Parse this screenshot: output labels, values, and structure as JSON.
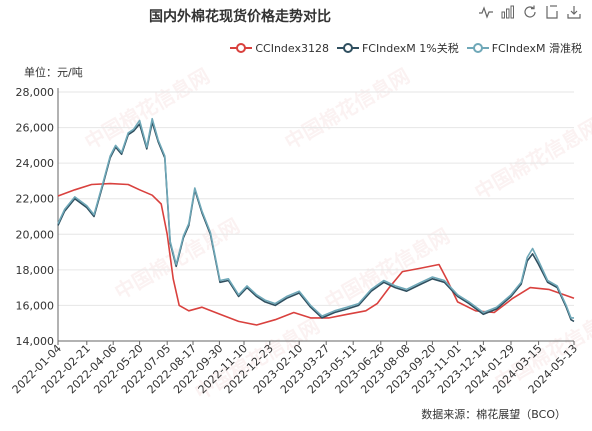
{
  "title": "国内外棉花现货价格走势对比",
  "unit_label": "单位：元/吨",
  "source_note": "数据来源：棉花展望（BCO）",
  "watermark_text": "中国棉花信息网",
  "toolbox": [
    {
      "name": "line-chart-icon"
    },
    {
      "name": "bar-chart-icon"
    },
    {
      "name": "refresh-icon"
    },
    {
      "name": "data-view-icon"
    },
    {
      "name": "save-image-icon"
    }
  ],
  "colors": {
    "CCIndex3128": "#d9413e",
    "FCIndexM_1pct": "#2f4f5f",
    "FCIndexM_slide": "#6fa8b8",
    "axis": "#666666",
    "grid": "#e6e6e6"
  },
  "chart_data": {
    "type": "line",
    "ylabel": "单位：元/吨",
    "ylim": [
      14000,
      28000
    ],
    "yticks": [
      14000,
      16000,
      18000,
      20000,
      22000,
      24000,
      26000,
      28000
    ],
    "ytick_labels": [
      "14,000",
      "16,000",
      "18,000",
      "20,000",
      "22,000",
      "24,000",
      "26,000",
      "28,000"
    ],
    "xlim": [
      "2022-01-04",
      "2024-05-13"
    ],
    "xtick_labels": [
      "2022-01-04",
      "2022-02-21",
      "2022-04-06",
      "2022-05-20",
      "2022-07-05",
      "2022-08-17",
      "2022-09-30",
      "2022-11-10",
      "2022-12-23",
      "2023-02-10",
      "2023-03-27",
      "2023-05-11",
      "2023-06-26",
      "2023-08-08",
      "2023-09-20",
      "2023-11-01",
      "2023-12-14",
      "2024-01-29",
      "2024-03-15",
      "2024-05-13"
    ],
    "legend_position": "top-right",
    "grid": "horizontal",
    "series": [
      {
        "name": "CCIndex3128",
        "x": [
          "2022-01-04",
          "2022-02-01",
          "2022-03-01",
          "2022-04-01",
          "2022-05-01",
          "2022-05-20",
          "2022-06-10",
          "2022-06-25",
          "2022-07-05",
          "2022-07-15",
          "2022-07-25",
          "2022-08-10",
          "2022-09-01",
          "2022-10-01",
          "2022-11-01",
          "2022-12-01",
          "2023-01-01",
          "2023-02-01",
          "2023-03-01",
          "2023-04-01",
          "2023-05-01",
          "2023-06-01",
          "2023-06-20",
          "2023-07-10",
          "2023-08-01",
          "2023-09-01",
          "2023-10-01",
          "2023-10-15",
          "2023-11-01",
          "2023-12-01",
          "2024-01-01",
          "2024-02-01",
          "2024-03-01",
          "2024-04-01",
          "2024-05-13"
        ],
        "y": [
          22150,
          22500,
          22800,
          22850,
          22800,
          22500,
          22200,
          21700,
          20000,
          17500,
          16000,
          15700,
          15900,
          15500,
          15100,
          14900,
          15200,
          15600,
          15300,
          15300,
          15500,
          15700,
          16100,
          17000,
          17900,
          18100,
          18300,
          17400,
          16200,
          15700,
          15600,
          16400,
          17000,
          16900,
          16400
        ]
      },
      {
        "name": "FCIndexM 1%关税",
        "x": [
          "2022-01-04",
          "2022-01-15",
          "2022-02-01",
          "2022-02-21",
          "2022-03-05",
          "2022-03-20",
          "2022-04-01",
          "2022-04-10",
          "2022-04-20",
          "2022-05-01",
          "2022-05-10",
          "2022-05-20",
          "2022-06-01",
          "2022-06-10",
          "2022-06-20",
          "2022-07-01",
          "2022-07-10",
          "2022-07-20",
          "2022-08-01",
          "2022-08-10",
          "2022-08-20",
          "2022-09-01",
          "2022-09-15",
          "2022-10-01",
          "2022-10-15",
          "2022-11-01",
          "2022-11-15",
          "2022-12-01",
          "2022-12-15",
          "2023-01-01",
          "2023-01-20",
          "2023-02-10",
          "2023-03-01",
          "2023-03-20",
          "2023-04-10",
          "2023-05-01",
          "2023-05-20",
          "2023-06-10",
          "2023-07-01",
          "2023-07-20",
          "2023-08-08",
          "2023-09-01",
          "2023-09-20",
          "2023-10-10",
          "2023-11-01",
          "2023-11-20",
          "2023-12-14",
          "2024-01-05",
          "2024-01-29",
          "2024-02-15",
          "2024-02-25",
          "2024-03-05",
          "2024-03-15",
          "2024-03-30",
          "2024-04-15",
          "2024-04-30",
          "2024-05-08",
          "2024-05-13"
        ],
        "y": [
          20500,
          21300,
          22000,
          21500,
          21000,
          22800,
          24300,
          24900,
          24500,
          25600,
          25800,
          26200,
          24800,
          26300,
          25200,
          24300,
          19500,
          18200,
          19800,
          20500,
          22500,
          21200,
          20000,
          17300,
          17400,
          16500,
          17000,
          16500,
          16200,
          16000,
          16400,
          16700,
          15900,
          15300,
          15600,
          15800,
          16000,
          16800,
          17300,
          17000,
          16800,
          17200,
          17500,
          17300,
          16500,
          16100,
          15500,
          15800,
          16500,
          17200,
          18500,
          18900,
          18300,
          17300,
          17000,
          15900,
          15200,
          15100
        ]
      },
      {
        "name": "FCIndexM 滑准税",
        "x": [
          "2022-01-04",
          "2022-01-15",
          "2022-02-01",
          "2022-02-21",
          "2022-03-05",
          "2022-03-20",
          "2022-04-01",
          "2022-04-10",
          "2022-04-20",
          "2022-05-01",
          "2022-05-10",
          "2022-05-20",
          "2022-06-01",
          "2022-06-10",
          "2022-06-20",
          "2022-07-01",
          "2022-07-10",
          "2022-07-20",
          "2022-08-01",
          "2022-08-10",
          "2022-08-20",
          "2022-09-01",
          "2022-09-15",
          "2022-10-01",
          "2022-10-15",
          "2022-11-01",
          "2022-11-15",
          "2022-12-01",
          "2022-12-15",
          "2023-01-01",
          "2023-01-20",
          "2023-02-10",
          "2023-03-01",
          "2023-03-20",
          "2023-04-10",
          "2023-05-01",
          "2023-05-20",
          "2023-06-10",
          "2023-07-01",
          "2023-07-20",
          "2023-08-08",
          "2023-09-01",
          "2023-09-20",
          "2023-10-10",
          "2023-11-01",
          "2023-11-20",
          "2023-12-14",
          "2024-01-05",
          "2024-01-29",
          "2024-02-15",
          "2024-02-25",
          "2024-03-05",
          "2024-03-15",
          "2024-03-30",
          "2024-04-15",
          "2024-04-30",
          "2024-05-08",
          "2024-05-13"
        ],
        "y": [
          20600,
          21400,
          22100,
          21600,
          21100,
          22900,
          24400,
          25000,
          24600,
          25700,
          25900,
          26400,
          24900,
          26500,
          25300,
          24400,
          19600,
          18300,
          19900,
          20600,
          22600,
          21300,
          20100,
          17400,
          17500,
          16600,
          17100,
          16600,
          16300,
          16100,
          16500,
          16800,
          16000,
          15400,
          15700,
          15900,
          16100,
          16900,
          17400,
          17100,
          16900,
          17300,
          17600,
          17400,
          16600,
          16200,
          15600,
          15900,
          16600,
          17300,
          18700,
          19200,
          18500,
          17400,
          17100,
          16000,
          15300,
          15300
        ]
      }
    ]
  }
}
